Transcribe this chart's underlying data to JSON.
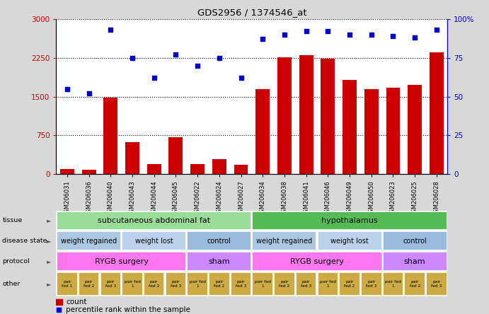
{
  "title": "GDS2956 / 1374546_at",
  "samples": [
    "GSM206031",
    "GSM206036",
    "GSM206040",
    "GSM206043",
    "GSM206044",
    "GSM206045",
    "GSM206022",
    "GSM206024",
    "GSM206027",
    "GSM206034",
    "GSM206038",
    "GSM206041",
    "GSM206046",
    "GSM206049",
    "GSM206050",
    "GSM206023",
    "GSM206025",
    "GSM206028"
  ],
  "counts": [
    100,
    90,
    1480,
    620,
    200,
    720,
    200,
    290,
    190,
    1640,
    2260,
    2300,
    2230,
    1820,
    1640,
    1670,
    1720,
    2350
  ],
  "percentiles": [
    55,
    52,
    93,
    75,
    62,
    77,
    70,
    75,
    62,
    87,
    90,
    92,
    92,
    90,
    90,
    89,
    88,
    93
  ],
  "ylim_left": [
    0,
    3000
  ],
  "ylim_right": [
    0,
    100
  ],
  "yticks_left": [
    0,
    750,
    1500,
    2250,
    3000
  ],
  "yticks_right": [
    0,
    25,
    50,
    75,
    100
  ],
  "bar_color": "#cc0000",
  "dot_color": "#0000cc",
  "bg_color": "#d8d8d8",
  "plot_bg": "#ffffff",
  "tissue_labels": [
    "subcutaneous abdominal fat",
    "hypothalamus"
  ],
  "tissue_colors": [
    "#99dd99",
    "#55bb55"
  ],
  "disease_labels": [
    "weight regained",
    "weight lost",
    "control",
    "weight regained",
    "weight lost",
    "control"
  ],
  "disease_colors": [
    "#aac8e0",
    "#bbd3ea",
    "#99bbdd",
    "#aac8e0",
    "#bbd3ea",
    "#99bbdd"
  ],
  "protocol_labels": [
    "RYGB surgery",
    "sham",
    "RYGB surgery",
    "sham"
  ],
  "protocol_colors": [
    "#ff77ee",
    "#cc88ff",
    "#ff77ee",
    "#cc88ff"
  ],
  "other_color": "#ccaa44",
  "legend_count_color": "#cc0000",
  "legend_dot_color": "#0000cc"
}
